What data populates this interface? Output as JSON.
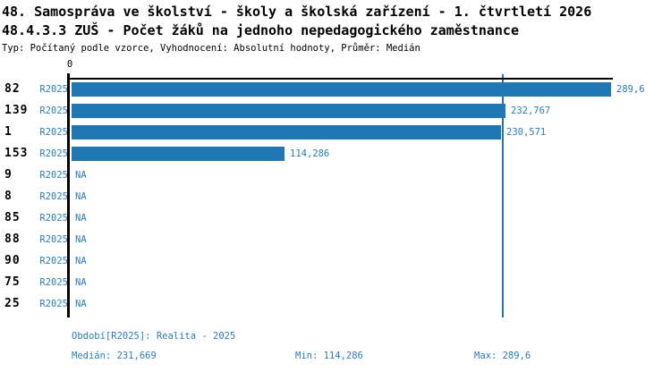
{
  "header": {
    "title_line1": "48. Samospráva ve školství - školy a školská zařízení - 1. čtvrtletí 2026",
    "title_line2": "48.4.3.3 ZUŠ - Počet žáků na jednoho nepedagogického zaměstnance",
    "subtitle": "Typ: Počítaný podle vzorce, Vyhodnocení: Absolutní hodnoty, Průměr: Medián"
  },
  "colors": {
    "bar": "#2077b4",
    "label_text": "#2b7cba",
    "axis": "#000000"
  },
  "chart_data": {
    "type": "bar",
    "orientation": "horizontal",
    "axis": {
      "zero_label": "0",
      "xlim": [
        0,
        290.6
      ],
      "grid": false
    },
    "categories": [
      "82",
      "139",
      "1",
      "153",
      "9",
      "8",
      "85",
      "88",
      "90",
      "75",
      "25"
    ],
    "series": [
      {
        "name": "R2025",
        "values": [
          289.6,
          232.767,
          230.571,
          114.286,
          null,
          null,
          null,
          null,
          null,
          null,
          null
        ]
      }
    ],
    "rows": [
      {
        "id": "82",
        "period": "R2025",
        "value": 289.6,
        "label": "289,6"
      },
      {
        "id": "139",
        "period": "R2025",
        "value": 232.767,
        "label": "232,767"
      },
      {
        "id": "1",
        "period": "R2025",
        "value": 230.571,
        "label": "230,571"
      },
      {
        "id": "153",
        "period": "R2025",
        "value": 114.286,
        "label": "114,286"
      },
      {
        "id": "9",
        "period": "R2025",
        "value": null,
        "label": "NA"
      },
      {
        "id": "8",
        "period": "R2025",
        "value": null,
        "label": "NA"
      },
      {
        "id": "85",
        "period": "R2025",
        "value": null,
        "label": "NA"
      },
      {
        "id": "88",
        "period": "R2025",
        "value": null,
        "label": "NA"
      },
      {
        "id": "90",
        "period": "R2025",
        "value": null,
        "label": "NA"
      },
      {
        "id": "75",
        "period": "R2025",
        "value": null,
        "label": "NA"
      },
      {
        "id": "25",
        "period": "R2025",
        "value": null,
        "label": "NA"
      }
    ],
    "stats": {
      "median": 231.669,
      "min": 114.286,
      "max": 289.6
    }
  },
  "footer": {
    "period_info": "Období[R2025]: Realita - 2025",
    "median": "Medián: 231,669",
    "min": "Min: 114,286",
    "max": "Max: 289,6"
  }
}
